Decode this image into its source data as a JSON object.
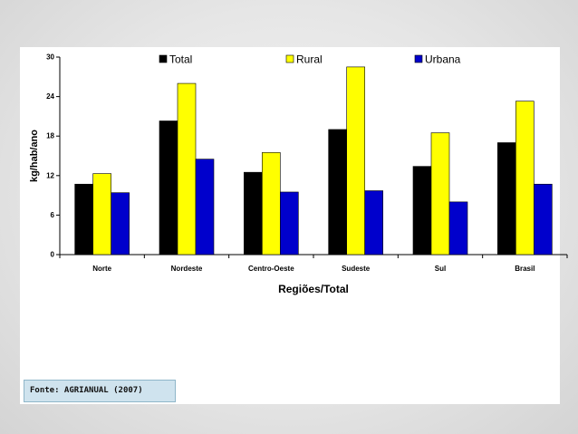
{
  "chart_data": {
    "type": "bar",
    "xlabel": "Regiões/Total",
    "ylabel": "kg/hab/ano",
    "ylim": [
      0,
      30
    ],
    "yticks": [
      0,
      6,
      12,
      18,
      24,
      30
    ],
    "categories": [
      "Norte",
      "Nordeste",
      "Centro-Oeste",
      "Sudeste",
      "Sul",
      "Brasil"
    ],
    "series": [
      {
        "name": "Total",
        "color": "#000000",
        "values": [
          10.7,
          20.3,
          12.5,
          19.0,
          13.4,
          17.0
        ]
      },
      {
        "name": "Rural",
        "color": "#ffff00",
        "values": [
          12.3,
          26.0,
          15.5,
          28.5,
          18.5,
          23.3
        ]
      },
      {
        "name": "Urbana",
        "color": "#0000cc",
        "values": [
          9.4,
          14.5,
          9.5,
          9.7,
          8.0,
          10.7
        ]
      }
    ],
    "legend_position": "top",
    "grid": false
  },
  "source": {
    "text": "Fonte: AGRIANUAL (2007)"
  }
}
